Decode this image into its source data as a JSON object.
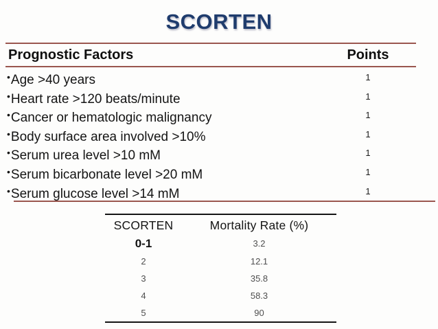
{
  "title": "SCORTEN",
  "factors_table": {
    "bullet": "•",
    "header": {
      "factors": "Prognostic Factors",
      "points": "Points"
    },
    "rows": [
      {
        "label": "Age >40 years",
        "points": "1"
      },
      {
        "label": "Heart rate >120 beats/minute",
        "points": "1"
      },
      {
        "label": "Cancer or hematologic malignancy",
        "points": "1"
      },
      {
        "label": "Body surface area involved >10%",
        "points": "1"
      },
      {
        "label": "Serum urea level >10 mM",
        "points": "1"
      },
      {
        "label": "Serum bicarbonate level >20 mM",
        "points": "1"
      },
      {
        "label": "Serum glucose level >14 mM",
        "points": "1"
      }
    ]
  },
  "mortality_table": {
    "header": {
      "score": "SCORTEN",
      "rate": "Mortality Rate (%)"
    },
    "rows": [
      {
        "score": "0-1",
        "rate": "3.2"
      },
      {
        "score": "2",
        "rate": "12.1"
      },
      {
        "score": "3",
        "rate": "35.8"
      },
      {
        "score": "4",
        "rate": "58.3"
      },
      {
        "score": "5",
        "rate": "90"
      }
    ]
  },
  "colors": {
    "title_navy": "#1F3C6D",
    "divider_red": "#9a564e",
    "table_border_black": "#141414",
    "muted_text_gray": "#4f4f4f"
  }
}
